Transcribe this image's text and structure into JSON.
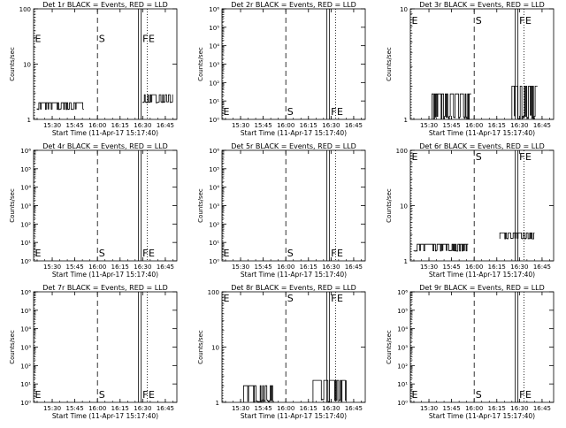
{
  "figure_note_time": "Start Time (11-Apr-17 15:17:40)",
  "chart_data": [
    {
      "type": "line",
      "title": "Det 1r BLACK = Events, RED = LLD",
      "scale": "log",
      "ylim": [
        1,
        100
      ],
      "yticks": [
        {
          "v": 1,
          "label": "1"
        },
        {
          "v": 10,
          "label": "10"
        },
        {
          "v": 100,
          "label": "100"
        }
      ],
      "ylabel": "Counts/sec",
      "xlabel": "Start Time (11-Apr-17 15:17:40)",
      "xticks": [
        "15:30",
        "15:45",
        "16:00",
        "16:15",
        "16:30",
        "16:45"
      ],
      "markers": [
        {
          "t": "15:17",
          "label": "E",
          "style": "dotted"
        },
        {
          "t": "16:00",
          "label": "S",
          "style": "dashed"
        },
        {
          "t": "16:29",
          "label": "F",
          "style": "solid"
        },
        {
          "t": "16:33",
          "label": "E",
          "style": "dotted"
        }
      ],
      "marker_label_level": 30,
      "segments": [
        {
          "from": "15:20",
          "to": "15:51",
          "base": 1.5,
          "high": 2.0
        },
        {
          "from": "16:30",
          "to": "16:50",
          "base": 2.0,
          "high": 2.8
        }
      ]
    },
    {
      "type": "line",
      "title": "Det 2r BLACK = Events, RED = LLD",
      "scale": "log",
      "ylim": [
        1,
        1000000.0
      ],
      "yticks": [
        {
          "v": 1,
          "label": "10⁰"
        },
        {
          "v": 10,
          "label": "10¹"
        },
        {
          "v": 100,
          "label": "10²"
        },
        {
          "v": 1000,
          "label": "10³"
        },
        {
          "v": 10000,
          "label": "10⁴"
        },
        {
          "v": 100000,
          "label": "10⁵"
        },
        {
          "v": 1000000,
          "label": "10⁶"
        }
      ],
      "ylabel": "Counts/sec",
      "xlabel": "Start Time (11-Apr-17 15:17:40)",
      "xticks": [
        "15:30",
        "15:45",
        "16:00",
        "16:15",
        "16:30",
        "16:45"
      ],
      "markers": [
        {
          "t": "15:17",
          "label": "E",
          "style": "dotted"
        },
        {
          "t": "16:00",
          "label": "S",
          "style": "dashed"
        },
        {
          "t": "16:29",
          "label": "F",
          "style": "solid"
        },
        {
          "t": "16:33",
          "label": "E",
          "style": "dotted"
        }
      ],
      "marker_label_level": 3,
      "segments": []
    },
    {
      "type": "line",
      "title": "Det 3r BLACK = Events, RED = LLD",
      "scale": "log",
      "ylim": [
        1,
        10
      ],
      "yticks": [
        {
          "v": 1,
          "label": "1"
        },
        {
          "v": 10,
          "label": "10"
        }
      ],
      "ylabel": "Counts/sec",
      "xlabel": "Start Time (11-Apr-17 15:17:40)",
      "xticks": [
        "15:30",
        "15:45",
        "16:00",
        "16:15",
        "16:30",
        "16:45"
      ],
      "markers": [
        {
          "t": "15:17",
          "label": "E",
          "style": "dotted"
        },
        {
          "t": "16:00",
          "label": "S",
          "style": "dashed"
        },
        {
          "t": "16:29",
          "label": "F",
          "style": "solid"
        },
        {
          "t": "16:33",
          "label": "E",
          "style": "dotted"
        }
      ],
      "marker_label_level": 8,
      "segments": [
        {
          "from": "15:32",
          "to": "15:58",
          "base": 1.0,
          "high": 1.7
        },
        {
          "from": "16:25",
          "to": "16:42",
          "base": 1.0,
          "high": 2.0
        }
      ]
    },
    {
      "type": "line",
      "title": "Det 4r BLACK = Events, RED = LLD",
      "scale": "log",
      "ylim": [
        1,
        1000000.0
      ],
      "yticks": [
        {
          "v": 1,
          "label": "10⁰"
        },
        {
          "v": 10,
          "label": "10¹"
        },
        {
          "v": 100,
          "label": "10²"
        },
        {
          "v": 1000,
          "label": "10³"
        },
        {
          "v": 10000,
          "label": "10⁴"
        },
        {
          "v": 100000,
          "label": "10⁵"
        },
        {
          "v": 1000000,
          "label": "10⁶"
        }
      ],
      "ylabel": "Counts/sec",
      "xlabel": "Start Time (11-Apr-17 15:17:40)",
      "xticks": [
        "15:30",
        "15:45",
        "16:00",
        "16:15",
        "16:30",
        "16:45"
      ],
      "markers": [
        {
          "t": "15:17",
          "label": "E",
          "style": "dotted"
        },
        {
          "t": "16:00",
          "label": "S",
          "style": "dashed"
        },
        {
          "t": "16:29",
          "label": "F",
          "style": "solid"
        },
        {
          "t": "16:33",
          "label": "E",
          "style": "dotted"
        }
      ],
      "marker_label_level": 3,
      "segments": []
    },
    {
      "type": "line",
      "title": "Det 5r BLACK = Events, RED = LLD",
      "scale": "log",
      "ylim": [
        1,
        1000000.0
      ],
      "yticks": [
        {
          "v": 1,
          "label": "10⁰"
        },
        {
          "v": 10,
          "label": "10¹"
        },
        {
          "v": 100,
          "label": "10²"
        },
        {
          "v": 1000,
          "label": "10³"
        },
        {
          "v": 10000,
          "label": "10⁴"
        },
        {
          "v": 100000,
          "label": "10⁵"
        },
        {
          "v": 1000000,
          "label": "10⁶"
        }
      ],
      "ylabel": "Counts/sec",
      "xlabel": "Start Time (11-Apr-17 15:17:40)",
      "xticks": [
        "15:30",
        "15:45",
        "16:00",
        "16:15",
        "16:30",
        "16:45"
      ],
      "markers": [
        {
          "t": "15:17",
          "label": "E",
          "style": "dotted"
        },
        {
          "t": "16:00",
          "label": "S",
          "style": "dashed"
        },
        {
          "t": "16:29",
          "label": "F",
          "style": "solid"
        },
        {
          "t": "16:33",
          "label": "E",
          "style": "dotted"
        }
      ],
      "marker_label_level": 3,
      "segments": []
    },
    {
      "type": "line",
      "title": "Det 6r BLACK = Events, RED = LLD",
      "scale": "log",
      "ylim": [
        1,
        100
      ],
      "yticks": [
        {
          "v": 1,
          "label": "1"
        },
        {
          "v": 10,
          "label": "10"
        },
        {
          "v": 100,
          "label": "100"
        }
      ],
      "ylabel": "Counts/sec",
      "xlabel": "Start Time (11-Apr-17 15:17:40)",
      "xticks": [
        "15:30",
        "15:45",
        "16:00",
        "16:15",
        "16:30",
        "16:45"
      ],
      "markers": [
        {
          "t": "15:17",
          "label": "E",
          "style": "dotted"
        },
        {
          "t": "16:00",
          "label": "S",
          "style": "dashed"
        },
        {
          "t": "16:29",
          "label": "F",
          "style": "solid"
        },
        {
          "t": "16:33",
          "label": "E",
          "style": "dotted"
        }
      ],
      "marker_label_level": 80,
      "segments": [
        {
          "from": "15:20",
          "to": "15:56",
          "base": 1.5,
          "high": 2.0
        },
        {
          "from": "16:17",
          "to": "16:40",
          "base": 2.5,
          "high": 3.2
        }
      ]
    },
    {
      "type": "line",
      "title": "Det 7r BLACK = Events, RED = LLD",
      "scale": "log",
      "ylim": [
        1,
        1000000.0
      ],
      "yticks": [
        {
          "v": 1,
          "label": "10⁰"
        },
        {
          "v": 10,
          "label": "10¹"
        },
        {
          "v": 100,
          "label": "10²"
        },
        {
          "v": 1000,
          "label": "10³"
        },
        {
          "v": 10000,
          "label": "10⁴"
        },
        {
          "v": 100000,
          "label": "10⁵"
        },
        {
          "v": 1000000,
          "label": "10⁶"
        }
      ],
      "ylabel": "Counts/sec",
      "xlabel": "Start Time (11-Apr-17 15:17:40)",
      "xticks": [
        "15:30",
        "15:45",
        "16:00",
        "16:15",
        "16:30",
        "16:45"
      ],
      "markers": [
        {
          "t": "15:17",
          "label": "E",
          "style": "dotted"
        },
        {
          "t": "16:00",
          "label": "S",
          "style": "dashed"
        },
        {
          "t": "16:29",
          "label": "F",
          "style": "solid"
        },
        {
          "t": "16:33",
          "label": "E",
          "style": "dotted"
        }
      ],
      "marker_label_level": 3,
      "segments": []
    },
    {
      "type": "line",
      "title": "Det 8r BLACK = Events, RED = LLD",
      "scale": "log",
      "ylim": [
        1,
        100
      ],
      "yticks": [
        {
          "v": 1,
          "label": "1"
        },
        {
          "v": 10,
          "label": "10"
        },
        {
          "v": 100,
          "label": "100"
        }
      ],
      "ylabel": "Counts/sec",
      "xlabel": "Start Time (11-Apr-17 15:17:40)",
      "xticks": [
        "15:30",
        "15:45",
        "16:00",
        "16:15",
        "16:30",
        "16:45"
      ],
      "markers": [
        {
          "t": "15:17",
          "label": "E",
          "style": "dotted"
        },
        {
          "t": "16:00",
          "label": "S",
          "style": "dashed"
        },
        {
          "t": "16:29",
          "label": "F",
          "style": "solid"
        },
        {
          "t": "16:33",
          "label": "E",
          "style": "dotted"
        }
      ],
      "marker_label_level": 80,
      "segments": [
        {
          "from": "15:32",
          "to": "15:52",
          "base": 1.0,
          "high": 2.0
        },
        {
          "from": "16:18",
          "to": "16:40",
          "base": 1.0,
          "high": 2.5
        }
      ]
    },
    {
      "type": "line",
      "title": "Det 9r BLACK = Events, RED = LLD",
      "scale": "log",
      "ylim": [
        1,
        1000000.0
      ],
      "yticks": [
        {
          "v": 1,
          "label": "10⁰"
        },
        {
          "v": 10,
          "label": "10¹"
        },
        {
          "v": 100,
          "label": "10²"
        },
        {
          "v": 1000,
          "label": "10³"
        },
        {
          "v": 10000,
          "label": "10⁴"
        },
        {
          "v": 100000,
          "label": "10⁵"
        },
        {
          "v": 1000000,
          "label": "10⁶"
        }
      ],
      "ylabel": "Counts/sec",
      "xlabel": "Start Time (11-Apr-17 15:17:40)",
      "xticks": [
        "15:30",
        "15:45",
        "16:00",
        "16:15",
        "16:30",
        "16:45"
      ],
      "markers": [
        {
          "t": "15:17",
          "label": "E",
          "style": "dotted"
        },
        {
          "t": "16:00",
          "label": "S",
          "style": "dashed"
        },
        {
          "t": "16:29",
          "label": "F",
          "style": "solid"
        },
        {
          "t": "16:33",
          "label": "E",
          "style": "dotted"
        }
      ],
      "marker_label_level": 3,
      "segments": []
    }
  ]
}
